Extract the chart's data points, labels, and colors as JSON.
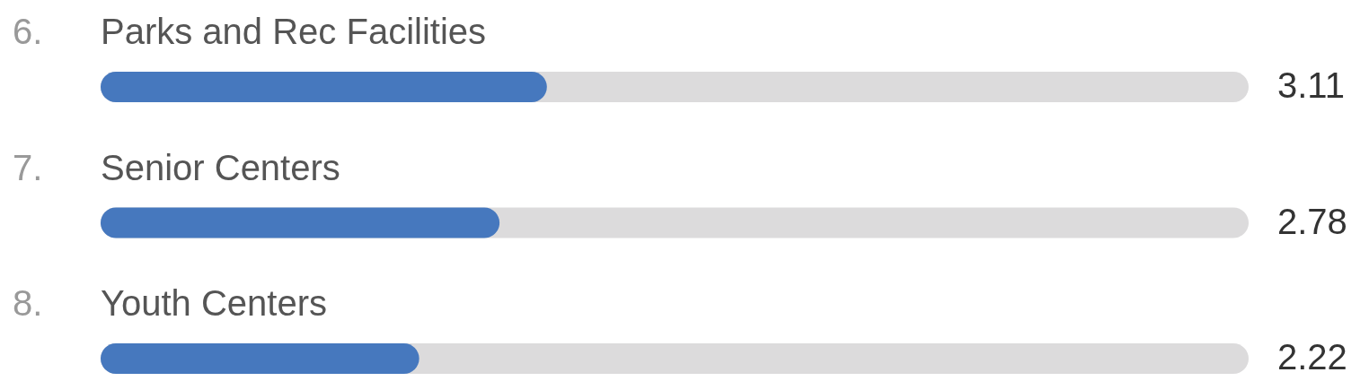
{
  "chart_data": {
    "type": "bar",
    "orientation": "horizontal",
    "categories": [
      "6. Parks and Rec Facilities",
      "7. Senior Centers",
      "8. Youth Centers"
    ],
    "values": [
      3.11,
      2.78,
      2.22
    ],
    "color": "#4678be",
    "xlim": [
      0,
      8
    ],
    "data_labels": true
  }
}
